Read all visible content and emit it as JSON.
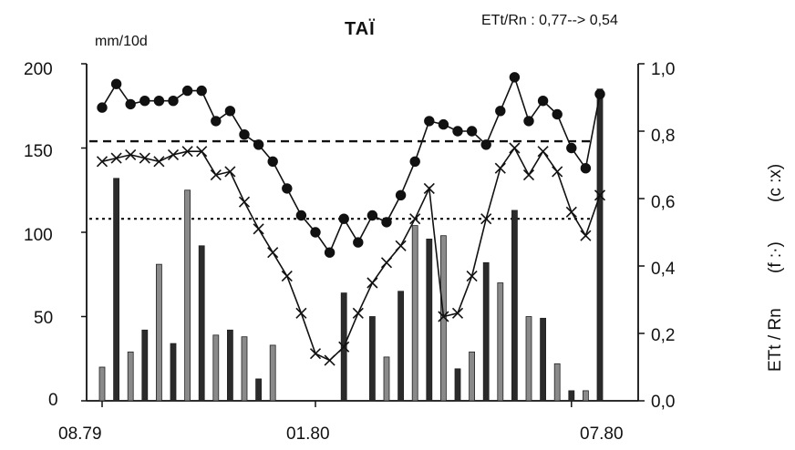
{
  "chart_data": {
    "type": "bar+line",
    "title": "TAÏ",
    "annotation": "ETt/Rn  :  0,77--> 0,54",
    "left_axis": {
      "unit_label": "mm/10d",
      "ylim": [
        0,
        200
      ],
      "ticks": [
        "200",
        "150",
        "100",
        "50",
        "0"
      ],
      "tick_values": [
        200,
        150,
        100,
        50,
        0
      ]
    },
    "right_axis": {
      "label_parts": [
        "ETt / Rn",
        "(f :·)",
        "(c :x)"
      ],
      "ylim": [
        0,
        1.0
      ],
      "ticks": [
        "1,0",
        "0,8",
        "0,6",
        "0,4",
        "0,2",
        "0,0"
      ],
      "tick_values": [
        1.0,
        0.8,
        0.6,
        0.4,
        0.2,
        0.0
      ]
    },
    "x_axis": {
      "ticks": [
        "08.79",
        "01.80",
        "07.80"
      ],
      "tick_positions": [
        0,
        15,
        33
      ]
    },
    "series": [
      {
        "kind": "bars",
        "axis": "left",
        "values": [
          20,
          132,
          29,
          42,
          81,
          34,
          125,
          92,
          39,
          42,
          38,
          13,
          33,
          0,
          0,
          0,
          0,
          64,
          0,
          50,
          26,
          65,
          104,
          96,
          98,
          19,
          29,
          82,
          70,
          113,
          50,
          49,
          22,
          6,
          6,
          185
        ]
      },
      {
        "kind": "line-filled-circles",
        "axis": "right",
        "values": [
          0.87,
          0.94,
          0.88,
          0.89,
          0.89,
          0.89,
          0.92,
          0.92,
          0.83,
          0.86,
          0.79,
          0.76,
          0.71,
          0.63,
          0.55,
          0.5,
          0.44,
          0.54,
          0.47,
          0.55,
          0.53,
          0.61,
          0.71,
          0.83,
          0.82,
          0.8,
          0.8,
          0.76,
          0.86,
          0.96,
          0.83,
          0.89,
          0.85,
          0.75,
          0.69,
          0.91
        ]
      },
      {
        "kind": "line-crosses",
        "axis": "right",
        "values": [
          0.71,
          0.72,
          0.73,
          0.72,
          0.71,
          0.73,
          0.74,
          0.74,
          0.67,
          0.68,
          0.59,
          0.51,
          0.44,
          0.37,
          0.26,
          0.14,
          0.12,
          0.16,
          0.26,
          0.35,
          0.41,
          0.46,
          0.54,
          0.63,
          0.25,
          0.26,
          0.37,
          0.54,
          0.69,
          0.75,
          0.67,
          0.74,
          0.68,
          0.56,
          0.49,
          0.61
        ]
      }
    ],
    "reference_lines": [
      {
        "style": "dashed",
        "axis": "right",
        "value": 0.77
      },
      {
        "style": "dotted",
        "axis": "right",
        "value": 0.54
      }
    ],
    "grid": false
  }
}
